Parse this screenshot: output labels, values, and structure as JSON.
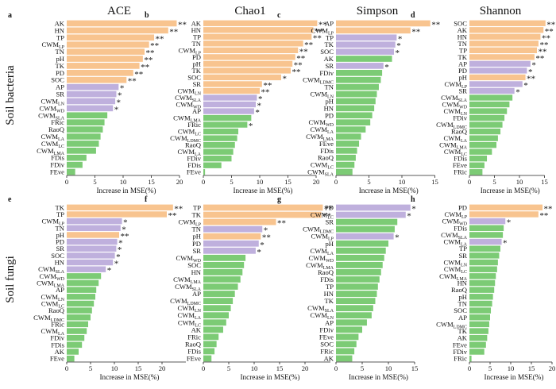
{
  "colors": {
    "orange": "#F8C48F",
    "purple": "#BFB0DD",
    "green": "#7CCB75",
    "axis": "#222222"
  },
  "column_titles": [
    "ACE",
    "Chao1",
    "Simpson",
    "Shannon"
  ],
  "row_labels": [
    "Soil bacteria",
    "Soil fungi"
  ],
  "chart_data": [
    {
      "type": "bar",
      "orientation": "horizontal",
      "panel": "a",
      "xlabel": "Increase in MSE(%)",
      "xlim": [
        0,
        20
      ],
      "xticks": [
        "0",
        "5",
        "10",
        "15",
        "20"
      ],
      "categories": [
        "AK",
        "HN",
        "TP",
        "CWM_LP",
        "TN",
        "pH",
        "TK",
        "PD",
        "SOC",
        "AP",
        "SR",
        "CWM_LN",
        "CWM_WD",
        "CWM_SLA",
        "FRic",
        "RaoQ",
        "CWM_LA",
        "CWM_LC",
        "CWM_LMA",
        "FDis",
        "FDiv",
        "FEve"
      ],
      "values": [
        19.5,
        18.0,
        15.5,
        14.6,
        13.8,
        13.5,
        12.9,
        11.8,
        10.6,
        9.2,
        8.8,
        8.6,
        8.2,
        7.2,
        6.7,
        6.4,
        6.0,
        5.7,
        5.2,
        3.5,
        2.8,
        1.5
      ],
      "significance": [
        "**",
        "**",
        "**",
        "**",
        "**",
        "**",
        "**",
        "**",
        "**",
        "*",
        "*",
        "*",
        "*",
        "",
        "",
        "",
        "",
        "",
        "",
        "",
        "",
        ""
      ],
      "groups": [
        "orange",
        "orange",
        "orange",
        "orange",
        "orange",
        "orange",
        "orange",
        "orange",
        "orange",
        "purple",
        "purple",
        "purple",
        "purple",
        "green",
        "green",
        "green",
        "green",
        "green",
        "green",
        "green",
        "green",
        "green"
      ]
    },
    {
      "type": "bar",
      "orientation": "horizontal",
      "panel": "b",
      "xlabel": "Increase in MSE(%)",
      "xlim": [
        0,
        20
      ],
      "xticks": [
        "0",
        "5",
        "10",
        "15",
        "20"
      ],
      "categories": [
        "AK",
        "HN",
        "TP",
        "TN",
        "CWM_LP",
        "PD",
        "pH",
        "TK",
        "SOC",
        "SR",
        "CWM_LN",
        "CWM_SLA",
        "CWM_WD",
        "AP",
        "CWM_LMA",
        "FRic",
        "CWM_LC",
        "CWM_LDMC",
        "RaoQ",
        "CWM_LA",
        "FDiv",
        "FDis",
        "FEve"
      ],
      "values": [
        20.2,
        19.5,
        19.2,
        17.7,
        16.8,
        16.3,
        15.8,
        15.5,
        13.8,
        10.4,
        10.0,
        9.5,
        9.3,
        9.0,
        8.5,
        7.8,
        6.2,
        6.0,
        5.6,
        5.3,
        5.0,
        3.2,
        0.3
      ],
      "significance": [
        "**",
        "**",
        "**",
        "**",
        "**",
        "**",
        "**",
        "**",
        "*",
        "**",
        "**",
        "*",
        "*",
        "*",
        "",
        "*",
        "",
        "",
        "",
        "",
        "",
        "",
        ""
      ],
      "groups": [
        "orange",
        "orange",
        "orange",
        "orange",
        "orange",
        "orange",
        "orange",
        "orange",
        "orange",
        "orange",
        "orange",
        "purple",
        "purple",
        "purple",
        "green",
        "green",
        "green",
        "green",
        "green",
        "green",
        "green",
        "green",
        "green"
      ]
    },
    {
      "type": "bar",
      "orientation": "horizontal",
      "panel": "c",
      "xlabel": "Increase in MSE(%)",
      "xlim": [
        0,
        15
      ],
      "xticks": [
        "0",
        "5",
        "10",
        "15"
      ],
      "categories": [
        "AP",
        "CWM_LP",
        "TP",
        "TK",
        "SOC",
        "AK",
        "SR",
        "FDiv",
        "CWM_LDMC",
        "TN",
        "CWM_LN",
        "pH",
        "HN",
        "PD",
        "CWM_WD",
        "CWM_LA",
        "CWM_LMA",
        "FEve",
        "FDis",
        "RaoQ",
        "CWM_LC",
        "CWM_SLA"
      ],
      "values": [
        14.3,
        11.3,
        9.2,
        9.0,
        8.8,
        8.5,
        7.2,
        7.0,
        6.8,
        6.5,
        6.2,
        6.0,
        5.8,
        5.5,
        5.2,
        4.5,
        3.8,
        3.5,
        3.2,
        3.0,
        2.8,
        2.5
      ],
      "significance": [
        "**",
        "**",
        "*",
        "*",
        "*",
        "",
        "*",
        "",
        "",
        "",
        "",
        "",
        "",
        "",
        "",
        "",
        "",
        "",
        "",
        "",
        "",
        ""
      ],
      "groups": [
        "orange",
        "orange",
        "purple",
        "purple",
        "purple",
        "green",
        "purple",
        "green",
        "green",
        "green",
        "green",
        "green",
        "green",
        "green",
        "green",
        "green",
        "green",
        "green",
        "green",
        "green",
        "green",
        "green"
      ]
    },
    {
      "type": "bar",
      "orientation": "horizontal",
      "panel": "d",
      "xlabel": "Increase in MSE(%)",
      "xlim": [
        0,
        15
      ],
      "xticks": [
        "0",
        "5",
        "10",
        "15"
      ],
      "categories": [
        "SOC",
        "AK",
        "HN",
        "TN",
        "TP",
        "TK",
        "AP",
        "PD",
        "pH",
        "CWM_LP",
        "SR",
        "CWM_SLA",
        "CWM_WD",
        "CWM_LN",
        "FDiv",
        "CWM_LDMC",
        "RaoQ",
        "CWM_LA",
        "CWM_LMA",
        "CWM_LC",
        "FDis",
        "FEve",
        "FRic"
      ],
      "values": [
        15.2,
        14.8,
        14.2,
        13.8,
        13.5,
        13.0,
        12.2,
        11.5,
        11.2,
        10.6,
        9.0,
        8.6,
        8.0,
        7.5,
        7.0,
        6.6,
        6.2,
        5.7,
        5.4,
        4.5,
        3.5,
        3.0,
        2.6
      ],
      "significance": [
        "**",
        "**",
        "**",
        "**",
        "**",
        "**",
        "*",
        "*",
        "**",
        "*",
        "*",
        "",
        "",
        "",
        "",
        "",
        "",
        "",
        "",
        "",
        "",
        "",
        ""
      ],
      "groups": [
        "orange",
        "orange",
        "orange",
        "orange",
        "orange",
        "orange",
        "purple",
        "purple",
        "orange",
        "purple",
        "purple",
        "green",
        "green",
        "green",
        "green",
        "green",
        "green",
        "green",
        "green",
        "green",
        "green",
        "green",
        "green"
      ]
    },
    {
      "type": "bar",
      "orientation": "horizontal",
      "panel": "e",
      "xlabel": "Increase in MSE(%)",
      "xlim": [
        0,
        25
      ],
      "xticks": [
        "0",
        "5",
        "10",
        "15",
        "20"
      ],
      "categories": [
        "TK",
        "TP",
        "CWM_LP",
        "TN",
        "pH",
        "PD",
        "SR",
        "SOC",
        "HN",
        "CWM_SLA",
        "CWM_WD",
        "CWM_LMA",
        "AP",
        "CWM_LN",
        "CWM_LC",
        "RaoQ",
        "CWM_LDMC",
        "FRic",
        "CWM_LA",
        "FDiv",
        "FDis",
        "AK",
        "FEve"
      ],
      "values": [
        22.3,
        21.0,
        11.6,
        11.3,
        11.0,
        10.6,
        10.4,
        10.1,
        9.7,
        8.2,
        7.2,
        6.7,
        6.2,
        6.0,
        5.7,
        5.3,
        5.0,
        4.5,
        4.2,
        3.7,
        3.2,
        2.5,
        1.6
      ],
      "significance": [
        "**",
        "**",
        "*",
        "*",
        "**",
        "*",
        "*",
        "*",
        "*",
        "*",
        "",
        "",
        "",
        "",
        "",
        "",
        "",
        "",
        "",
        "",
        "",
        "",
        ""
      ],
      "groups": [
        "orange",
        "orange",
        "purple",
        "purple",
        "orange",
        "purple",
        "purple",
        "purple",
        "purple",
        "purple",
        "green",
        "green",
        "green",
        "green",
        "green",
        "green",
        "green",
        "green",
        "green",
        "green",
        "green",
        "green",
        "green"
      ]
    },
    {
      "type": "bar",
      "orientation": "horizontal",
      "panel": "f",
      "xlabel": "Increase in MSE(%)",
      "xlim": [
        0,
        25
      ],
      "xticks": [
        "0",
        "5",
        "10",
        "15",
        "20"
      ],
      "categories": [
        "TP",
        "TK",
        "CWM_LP",
        "TN",
        "pH",
        "PD",
        "SR",
        "CWM_WD",
        "SOC",
        "HN",
        "CWM_LMA",
        "CWM_SLA",
        "AP",
        "CWM_LDMC",
        "CWM_LN",
        "CWM_LA",
        "CWM_LC",
        "AK",
        "FRic",
        "RaoQ",
        "FDis",
        "FEve"
      ],
      "values": [
        23.5,
        23.2,
        14.3,
        11.6,
        11.3,
        10.9,
        10.3,
        8.3,
        8.0,
        7.7,
        7.3,
        6.8,
        6.2,
        5.8,
        5.4,
        5.0,
        4.5,
        3.9,
        3.0,
        2.6,
        2.2,
        1.6
      ],
      "significance": [
        "**",
        "**",
        "**",
        "*",
        "**",
        "*",
        "*",
        "",
        "",
        "",
        "",
        "",
        "",
        "",
        "",
        "",
        "",
        "",
        "",
        "",
        "",
        ""
      ],
      "groups": [
        "orange",
        "orange",
        "orange",
        "purple",
        "orange",
        "purple",
        "purple",
        "green",
        "green",
        "green",
        "green",
        "green",
        "green",
        "green",
        "green",
        "green",
        "green",
        "green",
        "green",
        "green",
        "green",
        "green"
      ]
    },
    {
      "type": "bar",
      "orientation": "horizontal",
      "panel": "g",
      "xlabel": "Increase in MSE(%)",
      "xlim": [
        0,
        15
      ],
      "xticks": [
        "0",
        "5",
        "10",
        "15"
      ],
      "categories": [
        "PD",
        "CWM_LC",
        "SR",
        "CWM_LDMC",
        "CWM_LP",
        "pH",
        "CWM_LA",
        "CWM_WD",
        "CWM_LMA",
        "RaoQ",
        "FDis",
        "TP",
        "HN",
        "TK",
        "CWM_SLA",
        "CWM_LN",
        "AP",
        "FDiv",
        "FEve",
        "SOC",
        "FRic",
        "AK"
      ],
      "values": [
        14.2,
        13.3,
        11.7,
        11.2,
        11.0,
        10.0,
        9.5,
        9.2,
        8.9,
        8.6,
        8.3,
        8.0,
        7.8,
        7.5,
        7.1,
        6.8,
        5.9,
        5.0,
        4.3,
        3.9,
        3.5,
        3.1
      ],
      "significance": [
        "*",
        "*",
        "",
        "",
        "*",
        "",
        "",
        "",
        "",
        "",
        "",
        "",
        "",
        "",
        "",
        "",
        "",
        "",
        "",
        "",
        "",
        ""
      ],
      "groups": [
        "purple",
        "purple",
        "green",
        "green",
        "purple",
        "green",
        "green",
        "green",
        "green",
        "green",
        "green",
        "green",
        "green",
        "green",
        "green",
        "green",
        "green",
        "green",
        "green",
        "green",
        "green",
        "green"
      ]
    },
    {
      "type": "bar",
      "orientation": "horizontal",
      "panel": "h",
      "xlabel": "Increase in MSE(%)",
      "xlim": [
        0,
        20
      ],
      "xticks": [
        "0",
        "5",
        "10",
        "15",
        "20"
      ],
      "categories": [
        "PD",
        "CWM_LP",
        "CWM_WD",
        "FDis",
        "CWM_SLA",
        "CWM_LA",
        "TP",
        "SR",
        "CWM_LN",
        "CWM_LC",
        "CWM_LMA",
        "HN",
        "RaoQ",
        "pH",
        "TN",
        "SOC",
        "AP",
        "CWM_LDMC",
        "TK",
        "AK",
        "FEve",
        "FDiv",
        "FRic"
      ],
      "values": [
        17.7,
        16.7,
        8.7,
        8.3,
        8.1,
        7.8,
        7.5,
        7.2,
        6.9,
        6.7,
        6.4,
        6.2,
        6.0,
        5.7,
        5.5,
        5.2,
        5.0,
        4.8,
        4.6,
        4.3,
        4.0,
        3.6,
        0.5
      ],
      "significance": [
        "**",
        "**",
        "*",
        "",
        "",
        "*",
        "",
        "",
        "",
        "",
        "",
        "",
        "",
        "",
        "",
        "",
        "",
        "",
        "",
        "",
        "",
        "",
        ""
      ],
      "groups": [
        "orange",
        "orange",
        "purple",
        "green",
        "green",
        "purple",
        "green",
        "green",
        "green",
        "green",
        "green",
        "green",
        "green",
        "green",
        "green",
        "green",
        "green",
        "green",
        "green",
        "green",
        "green",
        "green",
        "green"
      ]
    }
  ]
}
